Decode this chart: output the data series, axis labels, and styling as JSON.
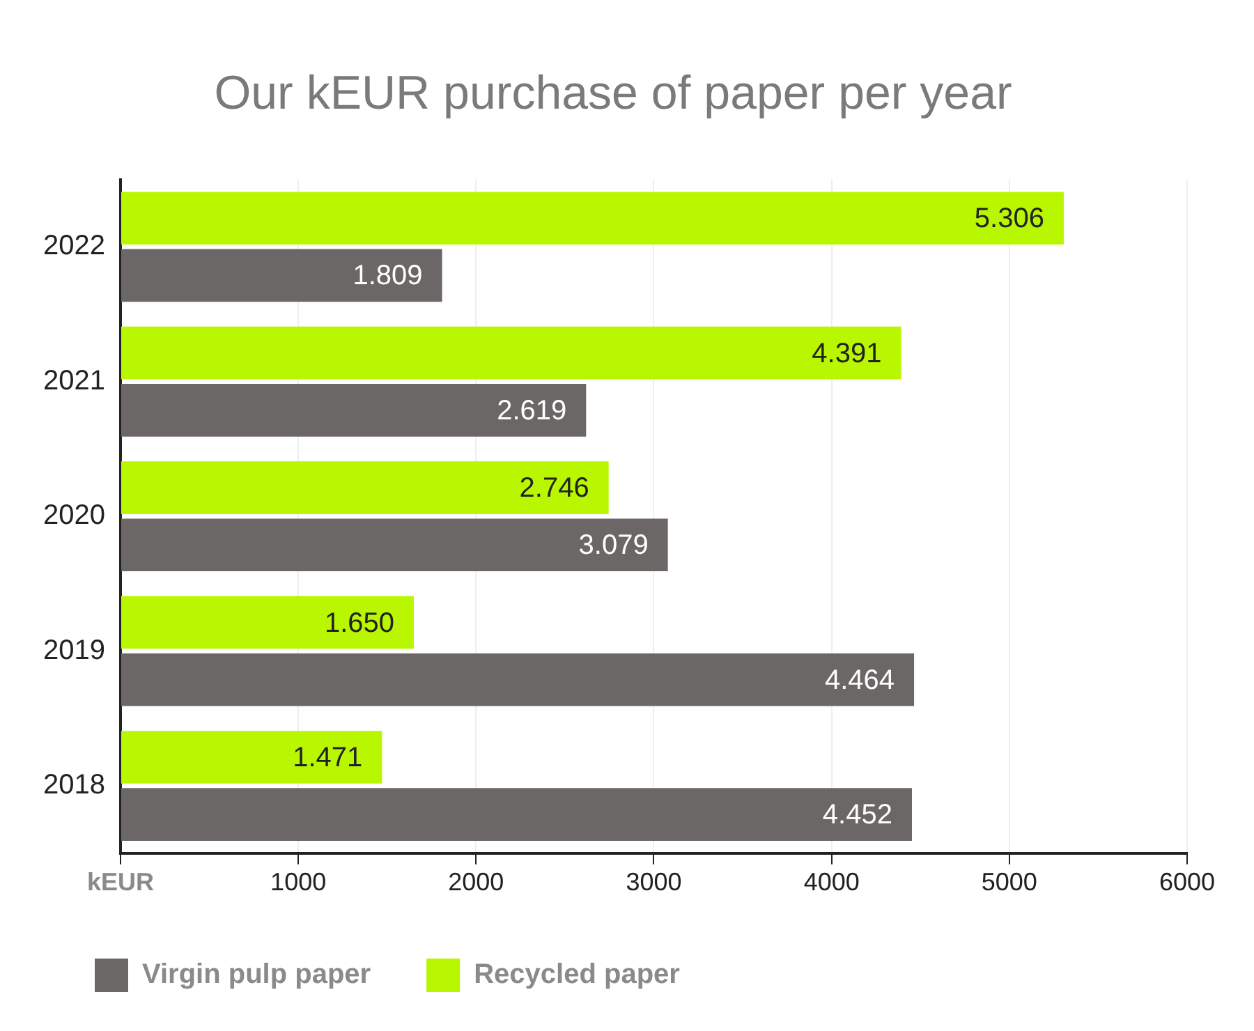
{
  "chart_data": {
    "type": "bar",
    "orientation": "horizontal",
    "title": "Our kEUR purchase of paper per year",
    "categories": [
      "2022",
      "2021",
      "2020",
      "2019",
      "2018"
    ],
    "series": [
      {
        "name": "Recycled paper",
        "color": "#b9f700",
        "values": [
          5306,
          4391,
          2746,
          1650,
          1471
        ],
        "value_labels": [
          "5.306",
          "4.391",
          "2.746",
          "1.650",
          "1.471"
        ]
      },
      {
        "name": "Virgin pulp paper",
        "color": "#6b6766",
        "values": [
          1809,
          2619,
          3079,
          4464,
          4452
        ],
        "value_labels": [
          "1.809",
          "2.619",
          "3.079",
          "4.464",
          "4.452"
        ]
      }
    ],
    "xlim": [
      0,
      6000
    ],
    "xticks": [
      {
        "value": 0,
        "label": "kEUR"
      },
      1000,
      2000,
      3000,
      4000,
      5000,
      6000
    ],
    "grid": "x",
    "legend": "bottom"
  }
}
